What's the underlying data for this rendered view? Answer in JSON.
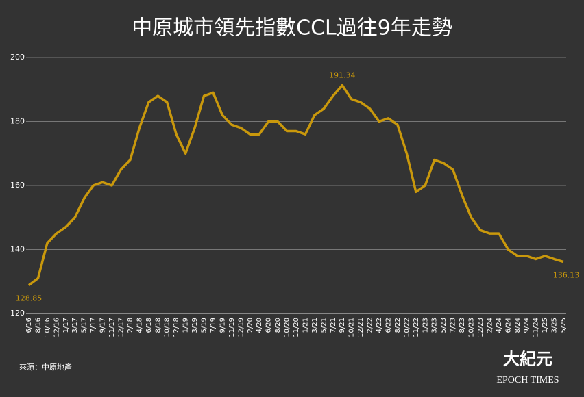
{
  "chart_data": {
    "type": "line",
    "title": "中原城市領先指數CCL過往9年走勢",
    "source": "來源：中原地產",
    "brand": {
      "chinese": "大紀元",
      "english": "EPOCH TIMES"
    },
    "categories": [
      "6/16",
      "8/16",
      "10/16",
      "12/16",
      "1/17",
      "3/17",
      "5/17",
      "7/17",
      "9/17",
      "11/17",
      "12/17",
      "2/18",
      "4/18",
      "6/18",
      "8/18",
      "10/18",
      "12/18",
      "1/19",
      "3/19",
      "5/19",
      "7/19",
      "9/19",
      "11/19",
      "12/19",
      "2/20",
      "4/20",
      "6/20",
      "8/20",
      "10/20",
      "11/20",
      "1/21",
      "3/21",
      "5/21",
      "7/21",
      "9/21",
      "10/21",
      "12/21",
      "2/22",
      "4/22",
      "6/22",
      "8/22",
      "10/22",
      "11/22",
      "1/23",
      "3/23",
      "5/23",
      "7/23",
      "8/23",
      "10/23",
      "12/23",
      "2/24",
      "4/24",
      "6/24",
      "8/24",
      "9/24",
      "11/24",
      "1/25",
      "3/25",
      "5/25"
    ],
    "values": [
      128.85,
      131,
      142,
      145,
      147,
      150,
      156,
      160,
      161,
      160,
      165,
      168,
      178,
      186,
      188,
      186,
      176,
      170,
      178,
      188,
      189,
      182,
      179,
      178,
      176,
      176,
      180,
      180,
      177,
      177,
      176,
      182,
      184,
      188,
      191.34,
      187,
      186,
      184,
      180,
      181,
      179,
      170,
      158,
      160,
      168,
      167,
      165,
      157,
      150,
      146,
      145,
      145,
      140,
      138,
      138,
      137,
      138,
      137,
      136.13
    ],
    "value_labels": [
      "128.85",
      null,
      null,
      null,
      null,
      null,
      null,
      null,
      null,
      null,
      null,
      null,
      null,
      null,
      null,
      null,
      null,
      null,
      null,
      null,
      null,
      null,
      null,
      null,
      null,
      null,
      null,
      null,
      null,
      null,
      null,
      null,
      null,
      null,
      "191.34",
      null,
      null,
      null,
      null,
      null,
      null,
      null,
      null,
      null,
      null,
      null,
      null,
      null,
      null,
      null,
      null,
      null,
      null,
      null,
      null,
      null,
      null,
      null,
      "136.13"
    ],
    "color": "#c9980c",
    "ylim": [
      120,
      200
    ],
    "yticks": [
      120,
      140,
      160,
      180,
      200
    ],
    "grid": true
  }
}
